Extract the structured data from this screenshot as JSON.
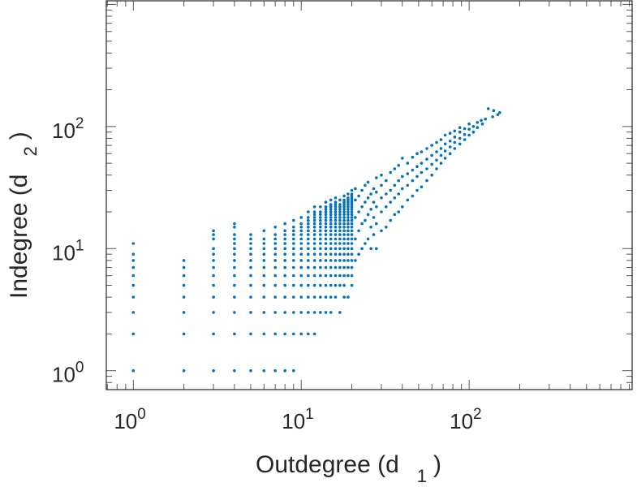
{
  "chart_data": {
    "type": "scatter",
    "title": "",
    "xlabel": "Outdegree (d",
    "xlabel_sub": "1",
    "xlabel_end": ")",
    "ylabel": "Indegree (d",
    "ylabel_sub": "2",
    "ylabel_end": ")",
    "xscale": "log",
    "yscale": "log",
    "xlim": [
      0.69,
      935
    ],
    "ylim": [
      0.7,
      1070
    ],
    "grid": false,
    "marker_color": "#0072BD",
    "xticks": [
      {
        "base": "10",
        "exp": "0",
        "value": 1
      },
      {
        "base": "10",
        "exp": "1",
        "value": 10
      },
      {
        "base": "10",
        "exp": "2",
        "value": 100
      }
    ],
    "yticks": [
      {
        "base": "10",
        "exp": "0",
        "value": 1
      },
      {
        "base": "10",
        "exp": "1",
        "value": 10
      },
      {
        "base": "10",
        "exp": "2",
        "value": 100
      }
    ],
    "columns_integer_fill": [
      {
        "x": 1,
        "y": [
          1,
          2,
          3,
          4,
          5,
          6,
          7,
          8,
          9,
          11
        ]
      },
      {
        "x": 2,
        "y": [
          1,
          2,
          3,
          4,
          5,
          6,
          7,
          8
        ]
      },
      {
        "x": 3,
        "y": [
          1,
          2,
          3,
          4,
          5,
          6,
          7,
          8,
          9,
          10,
          12,
          13,
          14
        ]
      },
      {
        "x": 4,
        "y": [
          1,
          2,
          3,
          4,
          5,
          6,
          7,
          8,
          9,
          10,
          11,
          12,
          13,
          15,
          16
        ]
      },
      {
        "x": 5,
        "y": [
          1,
          2,
          3,
          4,
          5,
          6,
          7,
          8,
          9,
          10,
          11,
          12,
          13
        ]
      },
      {
        "x": 6,
        "y": [
          1,
          2,
          3,
          4,
          5,
          6,
          7,
          8,
          9,
          10,
          11,
          12,
          14
        ]
      },
      {
        "x": 7,
        "y": [
          1,
          2,
          3,
          4,
          5,
          6,
          7,
          8,
          9,
          10,
          11,
          12,
          13,
          15
        ]
      },
      {
        "x": 8,
        "y": [
          1,
          2,
          3,
          4,
          5,
          6,
          7,
          8,
          9,
          10,
          11,
          12,
          13,
          14,
          16
        ]
      },
      {
        "x": 9,
        "y": [
          1,
          2,
          3,
          4,
          5,
          6,
          7,
          8,
          9,
          10,
          11,
          12,
          13,
          14,
          15,
          17
        ]
      },
      {
        "x": 10,
        "y": [
          2,
          3,
          4,
          5,
          6,
          7,
          8,
          9,
          10,
          11,
          12,
          13,
          14,
          15,
          16,
          18
        ]
      },
      {
        "x": 11,
        "y": [
          2,
          3,
          4,
          5,
          6,
          7,
          8,
          9,
          10,
          11,
          12,
          13,
          14,
          15,
          16,
          17,
          18,
          20
        ]
      },
      {
        "x": 12,
        "y": [
          2,
          3,
          4,
          5,
          6,
          7,
          8,
          9,
          10,
          11,
          12,
          13,
          14,
          15,
          16,
          17,
          18,
          19,
          20,
          22
        ]
      },
      {
        "x": 13,
        "y": [
          3,
          4,
          5,
          6,
          7,
          8,
          9,
          10,
          11,
          12,
          13,
          14,
          15,
          16,
          17,
          18,
          19,
          20,
          22
        ]
      },
      {
        "x": 14,
        "y": [
          3,
          4,
          5,
          6,
          7,
          8,
          9,
          10,
          11,
          12,
          13,
          14,
          15,
          16,
          17,
          18,
          19,
          20,
          21,
          22,
          24
        ]
      },
      {
        "x": 15,
        "y": [
          3,
          4,
          5,
          6,
          7,
          8,
          9,
          10,
          11,
          12,
          13,
          14,
          15,
          16,
          17,
          18,
          19,
          20,
          21,
          22,
          23,
          25
        ]
      },
      {
        "x": 16,
        "y": [
          4,
          5,
          6,
          7,
          8,
          9,
          10,
          11,
          12,
          13,
          14,
          15,
          16,
          17,
          18,
          19,
          20,
          21,
          22,
          23,
          24,
          26
        ]
      },
      {
        "x": 17,
        "y": [
          3,
          5,
          6,
          7,
          8,
          9,
          10,
          11,
          12,
          13,
          14,
          15,
          16,
          17,
          18,
          19,
          20,
          21,
          22,
          23,
          25
        ]
      },
      {
        "x": 18,
        "y": [
          4,
          5,
          6,
          7,
          8,
          9,
          10,
          11,
          12,
          13,
          14,
          15,
          16,
          17,
          18,
          19,
          20,
          21,
          22,
          23,
          24,
          25,
          27
        ]
      },
      {
        "x": 19,
        "y": [
          4,
          6,
          7,
          8,
          9,
          10,
          11,
          12,
          13,
          14,
          15,
          16,
          17,
          18,
          19,
          20,
          21,
          22,
          23,
          24,
          25,
          26,
          28
        ]
      },
      {
        "x": 20,
        "y": [
          5,
          6,
          7,
          8,
          9,
          10,
          11,
          12,
          13,
          14,
          15,
          16,
          17,
          18,
          19,
          20,
          21,
          22,
          23,
          24,
          25,
          26,
          27,
          28,
          30
        ]
      }
    ],
    "points": [
      [
        21,
        8
      ],
      [
        21,
        12
      ],
      [
        21,
        18
      ],
      [
        21,
        25
      ],
      [
        21,
        31
      ],
      [
        22,
        9
      ],
      [
        22,
        14
      ],
      [
        22,
        20
      ],
      [
        22,
        27
      ],
      [
        23,
        10
      ],
      [
        23,
        16
      ],
      [
        23,
        22
      ],
      [
        23,
        30
      ],
      [
        24,
        11
      ],
      [
        24,
        17
      ],
      [
        24,
        24
      ],
      [
        24,
        33
      ],
      [
        25,
        12
      ],
      [
        25,
        19
      ],
      [
        25,
        26
      ],
      [
        25,
        35
      ],
      [
        26,
        10
      ],
      [
        26,
        15
      ],
      [
        26,
        21
      ],
      [
        26,
        28
      ],
      [
        27,
        13
      ],
      [
        27,
        18
      ],
      [
        27,
        24
      ],
      [
        27,
        31
      ],
      [
        28,
        10
      ],
      [
        28,
        16
      ],
      [
        28,
        22
      ],
      [
        28,
        29
      ],
      [
        28,
        38
      ],
      [
        30,
        14
      ],
      [
        30,
        20
      ],
      [
        30,
        26
      ],
      [
        30,
        33
      ],
      [
        30,
        40
      ],
      [
        32,
        15
      ],
      [
        32,
        22
      ],
      [
        32,
        28
      ],
      [
        32,
        36
      ],
      [
        34,
        17
      ],
      [
        34,
        24
      ],
      [
        34,
        30
      ],
      [
        34,
        42
      ],
      [
        36,
        19
      ],
      [
        36,
        26
      ],
      [
        36,
        33
      ],
      [
        36,
        45
      ],
      [
        38,
        20
      ],
      [
        38,
        28
      ],
      [
        38,
        36
      ],
      [
        38,
        48
      ],
      [
        40,
        22
      ],
      [
        40,
        31
      ],
      [
        40,
        39
      ],
      [
        40,
        55
      ],
      [
        43,
        25
      ],
      [
        43,
        33
      ],
      [
        43,
        41
      ],
      [
        43,
        50
      ],
      [
        46,
        27
      ],
      [
        46,
        36
      ],
      [
        46,
        44
      ],
      [
        46,
        56
      ],
      [
        49,
        30
      ],
      [
        49,
        39
      ],
      [
        49,
        47
      ],
      [
        49,
        60
      ],
      [
        52,
        32
      ],
      [
        52,
        42
      ],
      [
        52,
        50
      ],
      [
        52,
        62
      ],
      [
        56,
        36
      ],
      [
        56,
        45
      ],
      [
        56,
        54
      ],
      [
        56,
        66
      ],
      [
        60,
        40
      ],
      [
        60,
        49
      ],
      [
        60,
        58
      ],
      [
        60,
        70
      ],
      [
        64,
        45
      ],
      [
        64,
        53
      ],
      [
        64,
        62
      ],
      [
        64,
        74
      ],
      [
        68,
        50
      ],
      [
        68,
        58
      ],
      [
        68,
        66
      ],
      [
        68,
        78
      ],
      [
        72,
        55
      ],
      [
        72,
        63
      ],
      [
        72,
        72
      ],
      [
        72,
        85
      ],
      [
        77,
        60
      ],
      [
        77,
        68
      ],
      [
        77,
        76
      ],
      [
        77,
        88
      ],
      [
        82,
        66
      ],
      [
        82,
        74
      ],
      [
        82,
        82
      ],
      [
        82,
        92
      ],
      [
        88,
        72
      ],
      [
        88,
        80
      ],
      [
        88,
        90
      ],
      [
        88,
        98
      ],
      [
        94,
        78
      ],
      [
        94,
        86
      ],
      [
        94,
        96
      ],
      [
        100,
        85
      ],
      [
        100,
        95
      ],
      [
        100,
        105
      ],
      [
        106,
        90
      ],
      [
        106,
        100
      ],
      [
        112,
        98
      ],
      [
        112,
        108
      ],
      [
        118,
        112
      ],
      [
        120,
        105
      ],
      [
        125,
        115
      ],
      [
        130,
        140
      ],
      [
        138,
        120
      ],
      [
        140,
        135
      ],
      [
        148,
        125
      ],
      [
        152,
        130
      ]
    ]
  }
}
